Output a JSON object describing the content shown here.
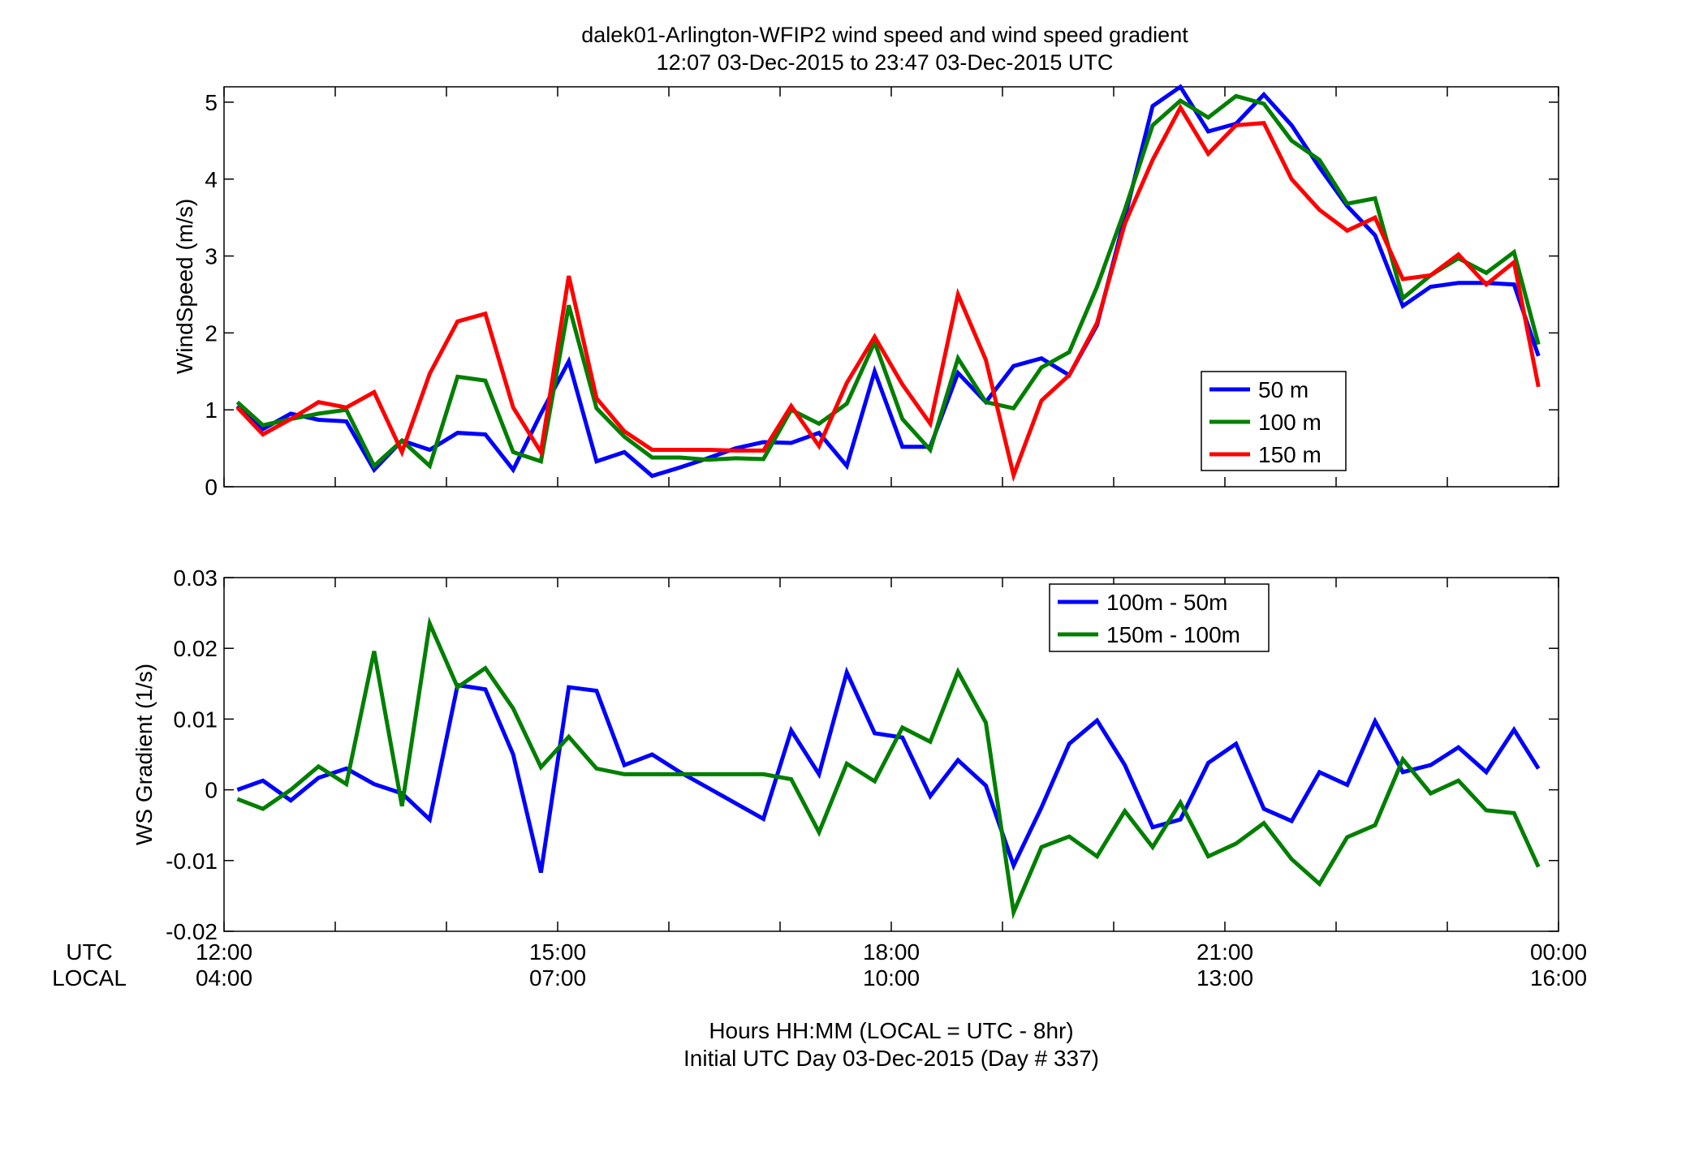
{
  "figure": {
    "title_line1": "dalek01-Arlington-WFIP2  wind speed and wind speed gradient",
    "title_line2": "12:07 03-Dec-2015 to 23:47 03-Dec-2015  UTC",
    "xaxis_label_line1": "Hours HH:MM  (LOCAL = UTC - 8hr)",
    "xaxis_label_line2": "Initial UTC Day 03-Dec-2015 (Day # 337)",
    "utc_row_label": "UTC",
    "local_row_label": "LOCAL",
    "utc_ticks": [
      "12:00",
      "15:00",
      "18:00",
      "21:00",
      "00:00"
    ],
    "local_ticks": [
      "04:00",
      "07:00",
      "10:00",
      "13:00",
      "16:00"
    ]
  },
  "chart_data": [
    {
      "type": "line",
      "panel": "top",
      "ylabel": "WindSpeed (m/s)",
      "xlim_hours_utc": [
        12,
        24
      ],
      "ylim": [
        0,
        5.2
      ],
      "yticks": [
        0,
        1,
        2,
        3,
        4,
        5
      ],
      "x_hours_utc": [
        12.12,
        12.35,
        12.6,
        12.85,
        13.1,
        13.35,
        13.6,
        13.85,
        14.1,
        14.35,
        14.6,
        14.85,
        15.1,
        15.35,
        15.6,
        15.85,
        16.1,
        16.35,
        16.6,
        16.85,
        17.1,
        17.35,
        17.6,
        17.85,
        18.1,
        18.35,
        18.6,
        18.85,
        19.1,
        19.35,
        19.6,
        19.85,
        20.1,
        20.35,
        20.6,
        20.85,
        21.1,
        21.35,
        21.6,
        21.85,
        22.1,
        22.35,
        22.6,
        22.85,
        23.1,
        23.35,
        23.6,
        23.82
      ],
      "legend_position": "center-right",
      "series": [
        {
          "name": "50 m",
          "color": "#0000ff",
          "values": [
            1.05,
            0.75,
            0.95,
            0.87,
            0.85,
            0.22,
            0.6,
            0.48,
            0.7,
            0.68,
            0.22,
            0.95,
            1.63,
            0.33,
            0.45,
            0.14,
            0.25,
            0.37,
            0.5,
            0.58,
            0.57,
            0.7,
            0.27,
            1.5,
            0.52,
            0.52,
            1.48,
            1.1,
            1.57,
            1.67,
            1.45,
            2.1,
            3.5,
            4.95,
            5.2,
            4.62,
            4.72,
            5.1,
            4.7,
            4.15,
            3.65,
            3.27,
            2.35,
            2.6,
            2.65,
            2.65,
            2.63,
            1.7
          ]
        },
        {
          "name": "100 m",
          "color": "#007f00",
          "values": [
            1.1,
            0.8,
            0.88,
            0.95,
            1.0,
            0.27,
            0.6,
            0.27,
            1.43,
            1.38,
            0.45,
            0.33,
            2.36,
            1.02,
            0.65,
            0.38,
            0.38,
            0.35,
            0.37,
            0.36,
            1.0,
            0.82,
            1.08,
            1.88,
            0.88,
            0.48,
            1.67,
            1.1,
            1.02,
            1.55,
            1.75,
            2.6,
            3.6,
            4.7,
            5.02,
            4.8,
            5.08,
            4.98,
            4.5,
            4.25,
            3.68,
            3.75,
            2.45,
            2.75,
            2.97,
            2.78,
            3.05,
            1.85
          ]
        },
        {
          "name": "150 m",
          "color": "#ff0000",
          "values": [
            1.03,
            0.68,
            0.88,
            1.1,
            1.03,
            1.23,
            0.45,
            1.47,
            2.15,
            2.25,
            1.03,
            0.45,
            2.74,
            1.15,
            0.72,
            0.48,
            0.48,
            0.48,
            0.47,
            0.47,
            1.05,
            0.53,
            1.35,
            1.95,
            1.33,
            0.82,
            2.5,
            1.65,
            0.15,
            1.12,
            1.45,
            2.13,
            3.42,
            4.25,
            4.93,
            4.33,
            4.7,
            4.73,
            4.0,
            3.6,
            3.33,
            3.5,
            2.7,
            2.75,
            3.02,
            2.63,
            2.92,
            1.3
          ]
        }
      ]
    },
    {
      "type": "line",
      "panel": "bottom",
      "ylabel": "WS Gradient (1/s)",
      "xlim_hours_utc": [
        12,
        24
      ],
      "ylim": [
        -0.02,
        0.03
      ],
      "yticks": [
        -0.02,
        -0.01,
        0,
        0.01,
        0.02,
        0.03
      ],
      "ytick_labels": [
        "-0.02",
        "-0.01",
        "0",
        "0.01",
        "0.02",
        "0.03"
      ],
      "x_hours_utc": [
        12.12,
        12.35,
        12.6,
        12.85,
        13.1,
        13.35,
        13.6,
        13.85,
        14.1,
        14.35,
        14.6,
        14.85,
        15.1,
        15.35,
        15.6,
        15.85,
        16.1,
        16.35,
        16.6,
        16.85,
        17.1,
        17.35,
        17.6,
        17.85,
        18.1,
        18.35,
        18.6,
        18.85,
        19.1,
        19.35,
        19.6,
        19.85,
        20.1,
        20.35,
        20.6,
        20.85,
        21.1,
        21.35,
        21.6,
        21.85,
        22.1,
        22.35,
        22.6,
        22.85,
        23.1,
        23.35,
        23.6,
        23.82
      ],
      "legend_position": "top-right",
      "series": [
        {
          "name": "100m - 50m",
          "color": "#0000ff",
          "values": [
            0.0,
            0.0013,
            -0.0015,
            0.0017,
            0.003,
            0.0008,
            -0.0005,
            -0.0042,
            0.0148,
            0.0142,
            0.005,
            -0.0117,
            0.0145,
            0.014,
            0.0035,
            0.005,
            0.0025,
            0.0003,
            -0.0019,
            -0.0041,
            0.0084,
            0.0022,
            0.0166,
            0.008,
            0.0074,
            -0.0009,
            0.0042,
            0.0006,
            -0.0107,
            -0.0025,
            0.0065,
            0.0098,
            0.0035,
            -0.0053,
            -0.0042,
            0.0038,
            0.0065,
            -0.0027,
            -0.0044,
            0.0025,
            0.0007,
            0.0097,
            0.0025,
            0.0035,
            0.006,
            0.0025,
            0.0085,
            0.003
          ]
        },
        {
          "name": "150m - 100m",
          "color": "#007f00",
          "values": [
            -0.0013,
            -0.0027,
            0.0,
            0.0033,
            0.0008,
            0.0196,
            -0.0023,
            0.0235,
            0.0145,
            0.0172,
            0.0115,
            0.0032,
            0.0075,
            0.003,
            0.0022,
            0.0022,
            0.0022,
            0.0022,
            0.0022,
            0.0022,
            0.0015,
            -0.006,
            0.0037,
            0.0012,
            0.0088,
            0.0068,
            0.0167,
            0.0095,
            -0.0173,
            -0.0081,
            -0.0066,
            -0.0094,
            -0.003,
            -0.0081,
            -0.0018,
            -0.0094,
            -0.0076,
            -0.0047,
            -0.0098,
            -0.0133,
            -0.0067,
            -0.005,
            0.0043,
            -0.0005,
            0.0013,
            -0.0029,
            -0.0033,
            -0.0109
          ]
        }
      ]
    }
  ]
}
